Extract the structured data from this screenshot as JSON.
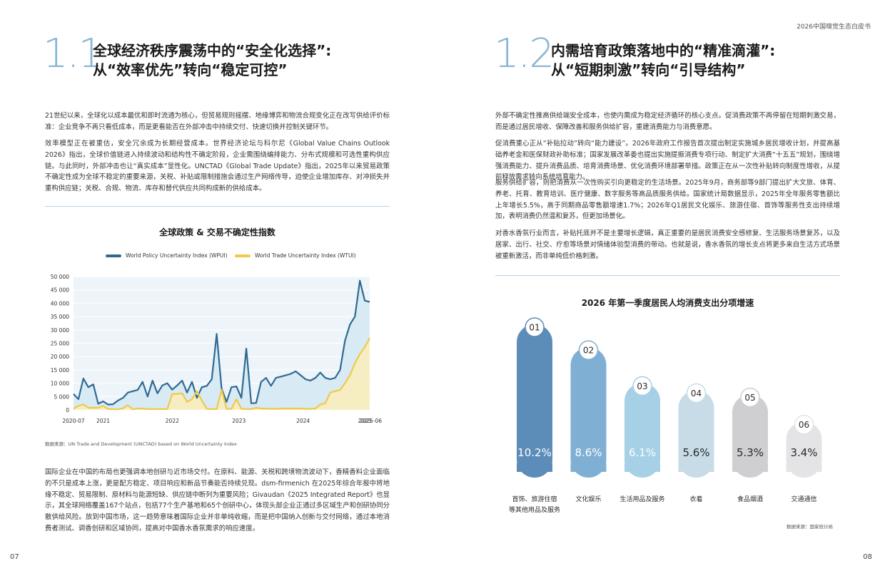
{
  "header": {
    "title": "2026中国嗅觉生态白皮书"
  },
  "left": {
    "page_number": "07",
    "section": {
      "number": "1.1",
      "title_line1": "全球经济秩序震荡中的“安全化选择”:",
      "title_line2": "从“效率优先”转向“稳定可控”"
    },
    "paragraphs": [
      "21世纪以来，全球化以成本最优和即时流通为核心，但贸易规则摇摆、地缘博弈和物流合规变化正在改写供给评价标准：企业竞争不再只看低成本，而是更看能否在外部冲击中持续交付、快速切换并控制关键环节。",
      "效率模型正在被重估，安全冗余成为长期经营成本。世界经济论坛与科尔尼《Global Value Chains Outlook 2026》指出，全球价值链进入持续波动和结构性不确定阶段，企业需围绕编排能力、分布式规模和可选性重构供应链。与此同时，外部冲击也让“真实成本”显性化。UNCTAD《Global Trade Update》指出，2025年以来贸易政策不确定性成为全球不稳定的重要来源，关税、补贴或限制措施会通过生产网络传导，迫使企业增加库存、对冲损失并重构供应链；关税、合规、物流、库存和替代供应共同构成新的供给成本。",
      "国际企业在中国的布局也更强调本地创研与近市场交付。在原料、能源、关税和跨境物流波动下，香精香料企业面临的不只是成本上涨，更是配方稳定、项目响应和新品节奏能否持续兑现。dsm-firmenich 在2025年综合年报中将地缘不稳定、贸易限制、原材料与能源短缺、供应链中断列为重要风险；Givaudan《2025 Integrated Report》也显示，其全球网络覆盖167个站点，包括77个生产基地和65个创研中心，体现头部企业正通过多区域生产和创研协同分散供给风险。放到中国市场，这一趋势意味着国际企业并非单纯收缩，而是把中国纳入创新与交付网络，通过本地消费者测试、调香创研和区域协同，提高对中国香水香氛需求的响应速度。"
    ],
    "source_note": "数据来源：UN Trade and Development (UNCTAD) based on World Uncertainty Index"
  },
  "right": {
    "page_number": "08",
    "section": {
      "number": "1.2",
      "title_line1": "内需培育政策落地中的“精准滴灌”:",
      "title_line2": "从“短期刺激”转向“引导结构”"
    },
    "paragraphs": [
      "外部不确定性推高供给端安全成本，也使内需成为稳定经济循环的核心支点。促消费政策不再停留在短期刺激交易，而是通过居民增收、保障改善和服务供给扩容，重建消费能力与消费意愿。",
      "促消费重心正从“补贴拉动”转向“能力建设”。2026年政府工作报告首次提出制定实施城乡居民增收计划，并提高基础养老金和医保财政补助标准；国家发展改革委也提出实施提振消费专项行动、制定扩大消费“十五五”规划，围绕增强消费能力、提升消费品质、培育消费场景、优化消费环境部署举措。政策正在从一次性补贴转向制度性增收，从提前释放需求转向系统培育能力。",
      "服务供给扩容，则把消费从一次性购买引向更稳定的生活场景。2025年9月，商务部等9部门提出扩大文旅、体育、养老、托育、教育培训、医疗健康、数字服务等高品质服务供给。国家统计局数据显示，2025年全年服务零售额比上年增长5.5%，高于同期商品零售额增速1.7%；2026年Q1居民文化娱乐、旅游住宿、首饰等服务性支出持续增加，表明消费仍然温和复苏，但更加场景化。",
      "对香水香氛行业而言，补贴托底并不是主要增长逻辑，真正重要的是居民消费安全感修复、生活服务场景复苏，以及居家、出行、社交、疗愈等场景对情绪体验型消费的带动。也就是说，香水香氛的增长支点将更多来自生活方式场景被重新激活，而非单纯低价格刺激。"
    ],
    "source_note": "数据来源：国家统计局"
  },
  "chart_data": [
    {
      "type": "area",
      "title": "全球政策 & 交易不确定性指数",
      "x_tick_labels": [
        "2020-07",
        "2021",
        "2022",
        "2023",
        "2024",
        "2025",
        "2025-06"
      ],
      "y_tick_labels": [
        "0",
        "5 000",
        "10 000",
        "15 000",
        "20 000",
        "25 000",
        "30 000",
        "35 000",
        "40 000",
        "45 000",
        "50 000"
      ],
      "ylim": [
        0,
        50000
      ],
      "x_range": [
        "2020-07",
        "2025-06"
      ],
      "grid": true,
      "legend_position": "top-left",
      "series": [
        {
          "name": "World Policy Uncertainty Index (WPUI)",
          "color": "#2f6a92",
          "fill": "#d4e7f2",
          "values": [
            6000,
            4000,
            11800,
            8500,
            9600,
            2300,
            3200,
            2000,
            2100,
            3500,
            4500,
            6500,
            7000,
            7500,
            10500,
            5000,
            11000,
            6200,
            9200,
            10000,
            7600,
            9200,
            11000,
            6500,
            10500,
            4500,
            8500,
            9000,
            11500,
            28500,
            8000,
            3000,
            8500,
            8800,
            4500,
            23000,
            2500,
            2600,
            10500,
            12000,
            9000,
            12000,
            12500,
            13000,
            13500,
            14500,
            13000,
            11500,
            11000,
            12000,
            14000,
            12000,
            11500,
            12000,
            15000,
            26000,
            32000,
            35000,
            48500,
            41000,
            40500
          ]
        },
        {
          "name": "World Trade Uncertainty Index (WTUI)",
          "color": "#f0c94a",
          "fill": "#fbeeb8",
          "values": [
            500,
            1500,
            2000,
            800,
            800,
            800,
            1500,
            300,
            300,
            200,
            600,
            1800,
            200,
            500,
            500,
            300,
            300,
            300,
            300,
            300,
            6000,
            6000,
            6200,
            3000,
            4000,
            7000,
            3500,
            400,
            300,
            300,
            7500,
            400,
            400,
            4000,
            400,
            300,
            300,
            800,
            500,
            500,
            400,
            400,
            500,
            500,
            500,
            500,
            500,
            400,
            400,
            500,
            2000,
            2500,
            6500,
            7000,
            7500,
            10000,
            13000,
            17500,
            21000,
            23500,
            27000
          ]
        }
      ]
    },
    {
      "type": "bar",
      "title": "2026 年第一季度居民人均消费支出分项增速",
      "categories": [
        "首饰、旅游住宿等其他用品及服务",
        "文化娱乐",
        "生活用品及服务",
        "衣着",
        "食品烟酒",
        "交通通信"
      ],
      "numbers": [
        "01",
        "02",
        "03",
        "04",
        "05",
        "06"
      ],
      "values": [
        10.2,
        8.6,
        6.1,
        5.6,
        5.3,
        3.4
      ],
      "value_labels": [
        "10.2%",
        "8.6%",
        "6.1%",
        "5.6%",
        "5.3%",
        "3.4%"
      ],
      "unit": "%",
      "colors": [
        "#5b8db8",
        "#7fb0d3",
        "#a6d0e6",
        "#c7dce7",
        "#cfcfd1",
        "#e4e4e6"
      ]
    }
  ]
}
